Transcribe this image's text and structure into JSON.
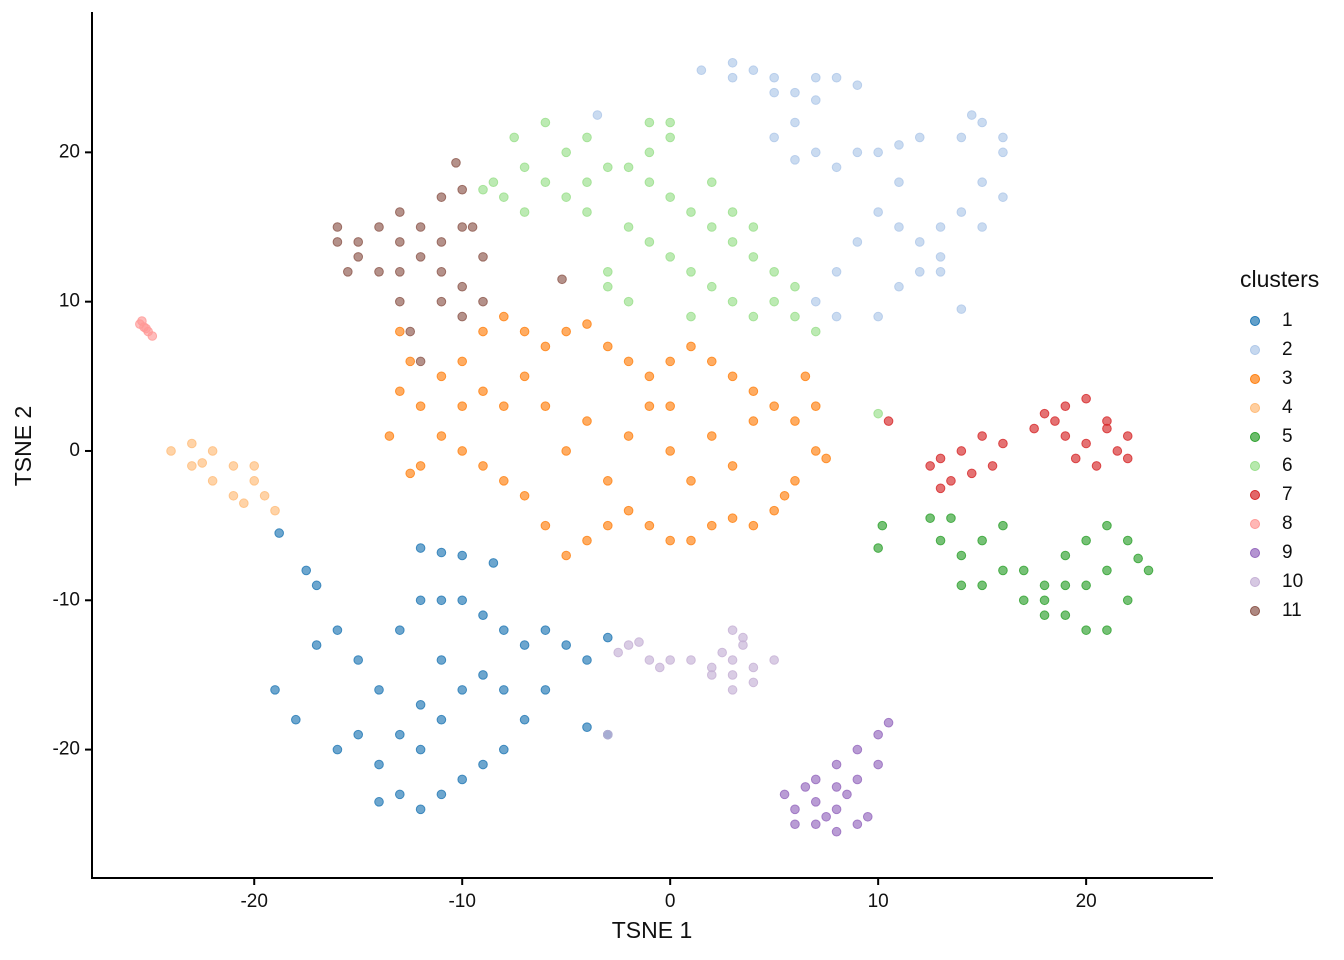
{
  "chart_data": {
    "type": "scatter",
    "x_label": "TSNE 1",
    "y_label": "TSNE 2",
    "legend_title": "clusters",
    "legend_position": "right",
    "xlim": [
      -27.8,
      26.1
    ],
    "ylim": [
      -28.6,
      29.4
    ],
    "xticks": [
      -20,
      -10,
      0,
      10,
      20
    ],
    "yticks": [
      -20,
      -10,
      0,
      10,
      20
    ],
    "grid": false,
    "series": [
      {
        "name": "1",
        "color": "#1f77b4",
        "x": [
          -12,
          -11,
          -10,
          -8.5,
          -17.5,
          -17,
          -18.8,
          -19,
          -18,
          -17,
          -16,
          -15,
          -14,
          -13,
          -12,
          -11,
          -10,
          -9,
          -8,
          -7,
          -6,
          -5,
          -4,
          -3,
          -15,
          -14,
          -13,
          -12,
          -11,
          -10,
          -9,
          -8,
          -7,
          -6,
          -12,
          -11,
          -10,
          -13,
          -9,
          -8,
          -11,
          -14,
          -16,
          -12,
          -3,
          -4
        ],
        "values": [
          -6.5,
          -6.8,
          -7,
          -7.5,
          -8,
          -9,
          -5.5,
          -16,
          -18,
          -13,
          -12,
          -14,
          -16,
          -12,
          -10,
          -10,
          -10,
          -11,
          -12,
          -13,
          -12,
          -13,
          -14,
          -12.5,
          -19,
          -21,
          -23,
          -24,
          -23,
          -22,
          -21,
          -20,
          -18,
          -16,
          -17,
          -18,
          -16,
          -19,
          -15,
          -16,
          -14,
          -23.5,
          -20,
          -20,
          -19,
          -18.5
        ]
      },
      {
        "name": "2",
        "color": "#aec7e8",
        "x": [
          1.5,
          3,
          4,
          5,
          6,
          7,
          8,
          9,
          3,
          5,
          7,
          5,
          6,
          7,
          8,
          6,
          9,
          10,
          11,
          12,
          11,
          10,
          11,
          12,
          13,
          14,
          15,
          16,
          15,
          14,
          16,
          15,
          12,
          11,
          13,
          9,
          8,
          7,
          8,
          10,
          14,
          16,
          14.5,
          -3.5,
          13
        ],
        "values": [
          25.5,
          26,
          25.5,
          25,
          24,
          25,
          25,
          24.5,
          25,
          24,
          23.5,
          21,
          22,
          20,
          19,
          19.5,
          20,
          20,
          20.5,
          21,
          18,
          16,
          15,
          14,
          15,
          16,
          18,
          20,
          22,
          21,
          17,
          15,
          12,
          11,
          12,
          14,
          12,
          10,
          9,
          9,
          9.5,
          21,
          22.5,
          22.5,
          13
        ]
      },
      {
        "name": "3",
        "color": "#ff7f0e",
        "x": [
          -13,
          -12,
          -11,
          -10,
          -9,
          -8,
          -7,
          -6,
          -5,
          -4,
          -3,
          -2,
          -1,
          0,
          1,
          2,
          3,
          4,
          5,
          6,
          7,
          6,
          5,
          4,
          3,
          2,
          1,
          0,
          -1,
          -2,
          -3,
          -4,
          -5,
          -6,
          -7,
          -8,
          -9,
          -10,
          -11,
          -12,
          -6,
          -4,
          -2,
          0,
          2,
          -5,
          -3,
          1,
          3,
          4,
          -8,
          -7,
          -1,
          -9,
          -10,
          -13,
          -12.5,
          7,
          6.5,
          7.5,
          -13.5,
          -12.5,
          0,
          5.5
        ],
        "values": [
          4,
          3,
          5,
          6,
          8,
          9,
          8,
          7,
          8,
          8.5,
          7,
          6,
          5,
          6,
          7,
          6,
          5,
          4,
          3,
          2,
          0,
          -2,
          -4,
          -5,
          -4.5,
          -5,
          -6,
          -6,
          -5,
          -4,
          -5,
          -6,
          -7,
          -5,
          -3,
          -2,
          -1,
          0,
          1,
          -1,
          3,
          2,
          1,
          0,
          1,
          0,
          -2,
          -2,
          -1,
          2,
          3,
          5,
          3,
          4,
          3,
          8,
          6,
          3,
          5,
          -0.5,
          1,
          -1.5,
          3,
          -3
        ]
      },
      {
        "name": "4",
        "color": "#ffbb78",
        "x": [
          -24,
          -23,
          -22,
          -21,
          -20,
          -19.5,
          -20.5,
          -22,
          -23,
          -21,
          -19,
          -22.5,
          -20
        ],
        "values": [
          0,
          0.5,
          0,
          -1,
          -2,
          -3,
          -3.5,
          -2,
          -1,
          -3,
          -4,
          -0.8,
          -1
        ]
      },
      {
        "name": "5",
        "color": "#2ca02c",
        "x": [
          13,
          14,
          15,
          16,
          14,
          15,
          17,
          18,
          19,
          20,
          21,
          22,
          23,
          22,
          21,
          20,
          19,
          20,
          21,
          19,
          18,
          17,
          16,
          12.5,
          10.2,
          10,
          13.5,
          22.5,
          18
        ],
        "values": [
          -6,
          -7,
          -6,
          -5,
          -9,
          -9,
          -8,
          -9,
          -7,
          -6,
          -5,
          -6,
          -8,
          -10,
          -12,
          -12,
          -11,
          -9,
          -8,
          -9,
          -11,
          -10,
          -8,
          -4.5,
          -5,
          -6.5,
          -4.5,
          -7.2,
          -10
        ]
      },
      {
        "name": "6",
        "color": "#98df8a",
        "x": [
          -7.5,
          -6,
          -5,
          -4,
          -7,
          -6,
          -5,
          -4,
          -3,
          -2,
          -1,
          0,
          -1,
          0,
          1,
          2,
          3,
          4,
          5,
          6,
          -1,
          0,
          1,
          2,
          3,
          4,
          5,
          -3,
          -4,
          -2,
          -8,
          0,
          -1,
          2,
          3,
          4,
          -8.5,
          -9,
          -3,
          6,
          -7,
          -2,
          10,
          1,
          7
        ],
        "values": [
          21,
          22,
          20,
          21,
          19,
          18,
          17,
          18,
          19,
          19,
          20,
          21,
          18,
          17,
          16,
          15,
          14,
          13,
          12,
          11,
          14,
          13,
          12,
          11,
          10,
          9,
          10,
          12,
          16,
          15,
          17,
          22,
          22,
          18,
          16,
          15,
          18,
          17.5,
          11,
          9,
          16,
          10,
          2.5,
          9,
          8
        ]
      },
      {
        "name": "7",
        "color": "#d62728",
        "x": [
          12.5,
          13,
          14,
          15,
          16,
          14.5,
          13.5,
          15.5,
          17.5,
          18,
          19,
          20,
          21,
          22,
          21.5,
          20,
          19,
          20.5,
          19.5,
          18.5,
          21,
          10.5,
          13,
          22
        ],
        "values": [
          -1,
          -0.5,
          0,
          1,
          0.5,
          -1.5,
          -2,
          -1,
          1.5,
          2.5,
          3,
          3.5,
          2,
          1,
          0,
          0.5,
          1,
          -1,
          -0.5,
          2,
          1.5,
          2,
          -2.5,
          -0.5
        ]
      },
      {
        "name": "8",
        "color": "#ff9896",
        "x": [
          -25.5,
          -25.3,
          -25.1,
          -24.9,
          -25.4,
          -25.2
        ],
        "values": [
          8.5,
          8.3,
          8,
          7.7,
          8.7,
          8.2
        ]
      },
      {
        "name": "9",
        "color": "#9467bd",
        "x": [
          5.5,
          6,
          7,
          8,
          9,
          10,
          10.5,
          8,
          9,
          8,
          7,
          6,
          9,
          7,
          8.5,
          10,
          6.5,
          8,
          9.5,
          7.5
        ],
        "values": [
          -23,
          -24,
          -22,
          -21,
          -20,
          -19,
          -18.2,
          -24,
          -25,
          -25.5,
          -25,
          -25,
          -22,
          -23.5,
          -23,
          -21,
          -22.5,
          -22.5,
          -24.5,
          -24.5
        ]
      },
      {
        "name": "10",
        "color": "#c5b0d5",
        "x": [
          -2,
          -1,
          0,
          1,
          2,
          3,
          4,
          3,
          3.5,
          3,
          3.5,
          4,
          2.5,
          -0.5,
          -2.5,
          2,
          5,
          3,
          -1.5,
          -3
        ],
        "values": [
          -13,
          -14,
          -14,
          -14,
          -14.5,
          -14,
          -14.5,
          -15,
          -13,
          -12,
          -12.5,
          -15.5,
          -13.5,
          -14.5,
          -13.5,
          -15,
          -14,
          -16,
          -12.8,
          -19
        ]
      },
      {
        "name": "11",
        "color": "#8c564b",
        "x": [
          -16,
          -15,
          -14,
          -13,
          -12,
          -11,
          -10,
          -9,
          -10,
          -11,
          -13,
          -14,
          -15,
          -12,
          -13,
          -11,
          -10,
          -10.3,
          -9.5,
          -9,
          -11,
          -12.5,
          -13,
          -10,
          -15.5,
          -16,
          -12,
          -5.2
        ],
        "values": [
          15,
          14,
          15,
          14,
          13,
          12,
          11,
          13,
          15,
          14,
          12,
          12,
          13,
          15,
          16,
          17,
          17.5,
          19.3,
          15,
          10,
          10,
          8,
          10,
          9,
          12,
          14,
          6,
          11.5
        ]
      }
    ]
  }
}
